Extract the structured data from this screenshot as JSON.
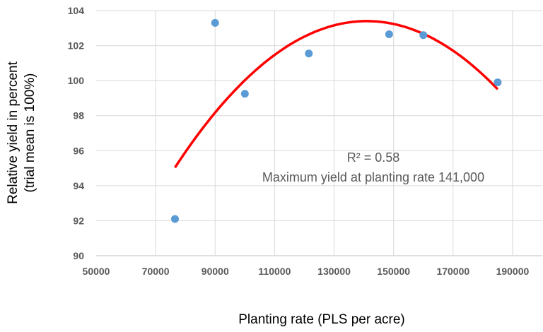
{
  "chart_data": {
    "type": "scatter",
    "title": "",
    "xlabel": "Planting rate (PLS per acre)",
    "ylabel_lines": [
      "Relative yield in percent",
      "(trial mean is 100%)"
    ],
    "xlim": [
      50000,
      200000
    ],
    "ylim": [
      90,
      104
    ],
    "xticks": [
      50000,
      70000,
      90000,
      110000,
      130000,
      150000,
      170000,
      190000
    ],
    "yticks": [
      90,
      92,
      94,
      96,
      98,
      100,
      102,
      104
    ],
    "grid": true,
    "series": [
      {
        "name": "Relative yield",
        "type": "scatter",
        "color": "#5B9BD5",
        "points": [
          {
            "x": 76500,
            "y": 92.1
          },
          {
            "x": 90000,
            "y": 103.3
          },
          {
            "x": 100000,
            "y": 99.25
          },
          {
            "x": 121500,
            "y": 101.55
          },
          {
            "x": 148500,
            "y": 102.65
          },
          {
            "x": 160000,
            "y": 102.6
          },
          {
            "x": 185000,
            "y": 99.9
          }
        ]
      },
      {
        "name": "Quadratic trendline",
        "type": "line",
        "color": "#FF0000",
        "vertex_x": 141000,
        "vertex_y": 103.4,
        "coef_a": -2.01e-09,
        "x_range": [
          76500,
          185000
        ]
      }
    ],
    "annotations": [
      "R² = 0.58",
      "Maximum yield at planting rate 141,000"
    ]
  }
}
